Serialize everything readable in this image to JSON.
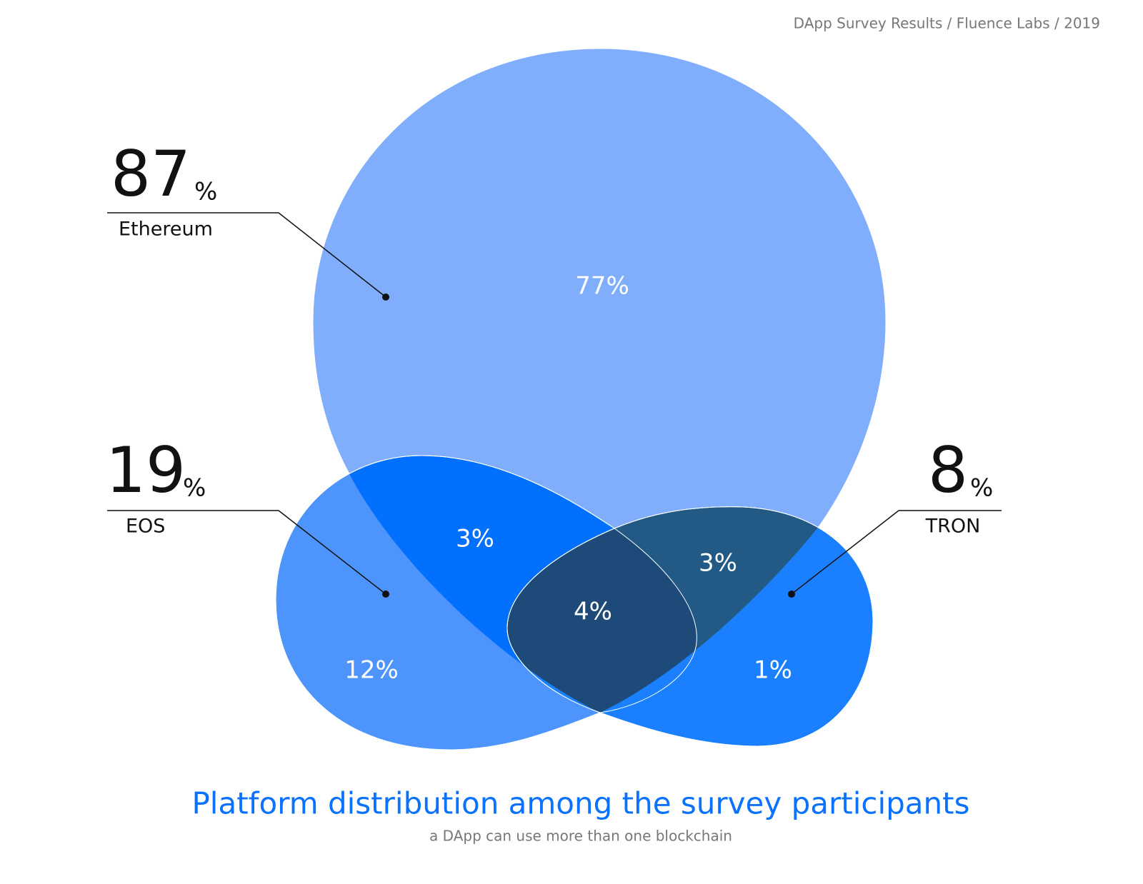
{
  "chart_data": {
    "type": "venn",
    "source": "DApp Survey Results / Fluence Labs / 2019",
    "title": "Platform distribution among the survey participants",
    "subtitle": "a DApp can use more than one blockchain",
    "unit": "%",
    "sets": {
      "names": [
        "Ethereum",
        "EOS",
        "TRON"
      ],
      "values": [
        87,
        19,
        8
      ]
    },
    "regions": {
      "values": [
        77,
        12,
        1,
        3,
        3,
        4
      ],
      "value_labels": [
        "77%",
        "12%",
        "1%",
        "3%",
        "3%",
        "4%"
      ],
      "colors": [
        "#80aefd",
        "#4d94fd",
        "#1a80ff",
        "#0270fe",
        "#225a85",
        "#1e4a7a"
      ]
    }
  }
}
